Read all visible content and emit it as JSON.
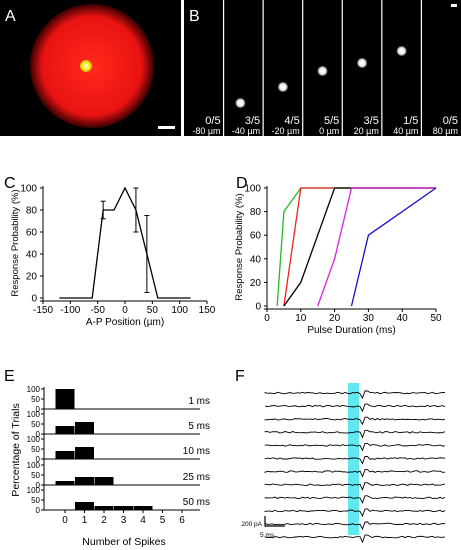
{
  "panels": {
    "A": {
      "label": "A",
      "colors": {
        "background": "#000000",
        "halo": "#ff1a1a",
        "spot": "#ffff33",
        "scale_bar": "#ffffff"
      }
    },
    "B": {
      "label": "B",
      "frames": [
        {
          "ratio": "0/5",
          "position": "-80 µm",
          "spot": null
        },
        {
          "ratio": "3/5",
          "position": "-40 µm",
          "spot": "bottom"
        },
        {
          "ratio": "4/5",
          "position": "-20 µm",
          "spot": "lower"
        },
        {
          "ratio": "5/5",
          "position": "0 µm",
          "spot": "middle"
        },
        {
          "ratio": "3/5",
          "position": "20 µm",
          "spot": "upper-middle"
        },
        {
          "ratio": "1/5",
          "position": "40 µm",
          "spot": "upper"
        },
        {
          "ratio": "0/5",
          "position": "80 µm",
          "spot": null
        }
      ]
    }
  },
  "chart_data": [
    {
      "panel": "C",
      "type": "line",
      "xlabel": "A-P Position (µm)",
      "ylabel": "Response Probability (%)",
      "xlim": [
        -150,
        150
      ],
      "ylim": [
        0,
        100
      ],
      "xticks": [
        "-150",
        "-100",
        "-50",
        "0",
        "50",
        "100",
        "150"
      ],
      "yticks": [
        "0",
        "20",
        "40",
        "60",
        "80",
        "100"
      ],
      "series": [
        {
          "x": [
            -120,
            -80,
            -60,
            -40,
            -30,
            -20,
            0,
            20,
            40,
            60,
            80,
            120
          ],
          "y": [
            0,
            0,
            0,
            80,
            80,
            80,
            100,
            80,
            40,
            0,
            0,
            0
          ],
          "err": [
            0,
            0,
            0,
            8,
            0,
            0,
            0,
            20,
            35,
            0,
            0,
            0
          ]
        }
      ],
      "color": "#000000"
    },
    {
      "panel": "D",
      "type": "line",
      "xlabel": "Pulse Duration (ms)",
      "ylabel": "Response Probability (%)",
      "xlim": [
        0,
        50
      ],
      "ylim": [
        0,
        100
      ],
      "xticks": [
        "0",
        "10",
        "20",
        "30",
        "40",
        "50"
      ],
      "yticks": [
        "0",
        "20",
        "40",
        "60",
        "80",
        "100"
      ],
      "series": [
        {
          "color": "#22bb22",
          "x": [
            3,
            5,
            10,
            50
          ],
          "y": [
            0,
            80,
            100,
            100
          ]
        },
        {
          "color": "#ee2222",
          "x": [
            5,
            10,
            50
          ],
          "y": [
            0,
            100,
            100
          ]
        },
        {
          "color": "#000000",
          "x": [
            5,
            10,
            20,
            25,
            50
          ],
          "y": [
            0,
            20,
            100,
            100,
            100
          ]
        },
        {
          "color": "#dd22dd",
          "x": [
            15,
            20,
            25,
            50
          ],
          "y": [
            0,
            40,
            100,
            100
          ]
        },
        {
          "color": "#1111cc",
          "x": [
            25,
            30,
            50
          ],
          "y": [
            0,
            60,
            100
          ]
        }
      ]
    },
    {
      "panel": "E",
      "type": "bar",
      "xlabel": "Number of Spikes",
      "ylabel": "Percentage of Trials",
      "categories": [
        0,
        1,
        2,
        3,
        4,
        5,
        6
      ],
      "ylim": [
        0,
        100
      ],
      "yticks": [
        "0",
        "50",
        "100"
      ],
      "series": [
        {
          "name": "1 ms",
          "values": [
            100,
            0,
            0,
            0,
            0,
            0,
            0
          ]
        },
        {
          "name": "5 ms",
          "values": [
            40,
            60,
            0,
            0,
            0,
            0,
            0
          ]
        },
        {
          "name": "10 ms",
          "values": [
            40,
            60,
            0,
            0,
            0,
            0,
            0
          ]
        },
        {
          "name": "25 ms",
          "values": [
            20,
            40,
            40,
            0,
            0,
            0,
            0
          ]
        },
        {
          "name": "50 ms",
          "values": [
            0,
            40,
            20,
            20,
            20,
            0,
            0
          ]
        }
      ]
    }
  ],
  "panelF": {
    "label": "F",
    "n_traces": 12,
    "scale_y": "200 pA",
    "scale_x": "5 ms",
    "stim_color": "#5fe8f0"
  }
}
